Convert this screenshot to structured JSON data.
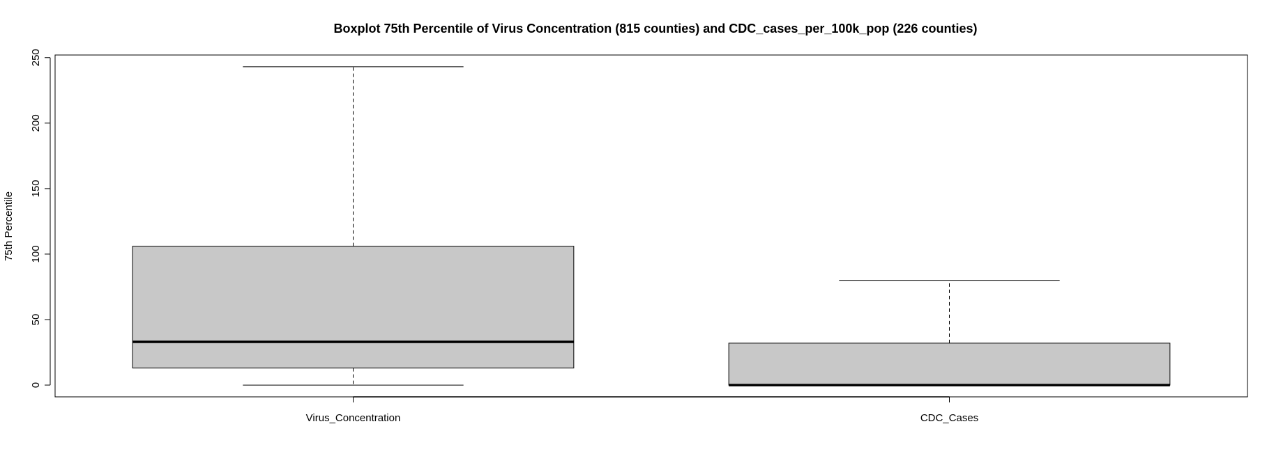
{
  "chart_data": {
    "type": "boxplot",
    "title": "Boxplot 75th Percentile of Virus Concentration (815 counties) and CDC_cases_per_100k_pop (226 counties)",
    "xlabel": "",
    "ylabel": "75th Percentile",
    "ylim": [
      -9,
      252
    ],
    "yticks": [
      0,
      50,
      100,
      150,
      200,
      250
    ],
    "ytick_labels": [
      "0",
      "50",
      "100",
      "150",
      "200",
      "250"
    ],
    "categories": [
      "Virus_Concentration",
      "CDC_Cases"
    ],
    "boxes": [
      {
        "category": "Virus_Concentration",
        "whisker_low": 0,
        "q1": 13,
        "median": 33,
        "q3": 106,
        "whisker_high": 243
      },
      {
        "category": "CDC_Cases",
        "whisker_low": 0,
        "q1": 0,
        "median": 0,
        "q3": 32,
        "whisker_high": 80
      }
    ],
    "box_fill": "#c8c8c8",
    "line_color": "#000000",
    "grid": false,
    "legend": "none"
  }
}
